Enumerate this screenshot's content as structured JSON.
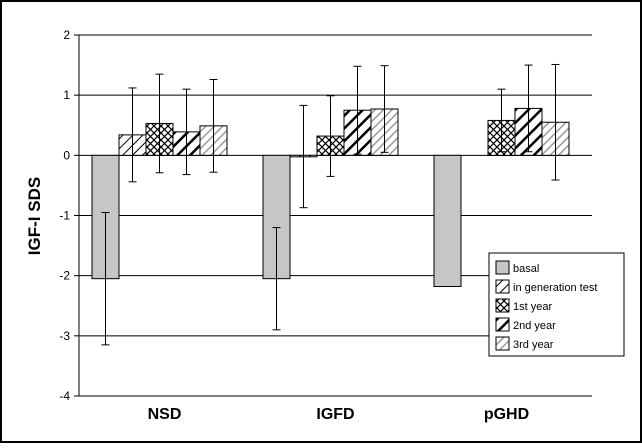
{
  "chart_data": {
    "type": "bar",
    "ylabel": "IGF-I SDS",
    "xlabel": "",
    "title": "",
    "ylim": [
      -4,
      2
    ],
    "yticks": [
      2,
      1,
      0,
      -1,
      -2,
      -3,
      -4
    ],
    "grid": true,
    "legend_position": "right",
    "categories": [
      "NSD",
      "IGFD",
      "pGHD"
    ],
    "series": [
      {
        "name": "basal",
        "pattern": "solid-gray",
        "values": [
          -2.05,
          -2.05,
          -2.18
        ],
        "errors": [
          1.1,
          0.85,
          null
        ]
      },
      {
        "name": "in generation test",
        "pattern": "diag-fwd",
        "values": [
          0.34,
          -0.02,
          null
        ],
        "errors": [
          0.78,
          0.85,
          null
        ]
      },
      {
        "name": "1st  year",
        "pattern": "crosshatch",
        "values": [
          0.53,
          0.32,
          0.58
        ],
        "errors": [
          0.82,
          0.67,
          0.52
        ]
      },
      {
        "name": "2nd year",
        "pattern": "diag-thick",
        "values": [
          0.39,
          0.75,
          0.78
        ],
        "errors": [
          0.71,
          0.73,
          0.72
        ]
      },
      {
        "name": "3rd year",
        "pattern": "diag-gray",
        "values": [
          0.49,
          0.77,
          0.55
        ],
        "errors": [
          0.77,
          0.72,
          0.96
        ]
      }
    ]
  }
}
